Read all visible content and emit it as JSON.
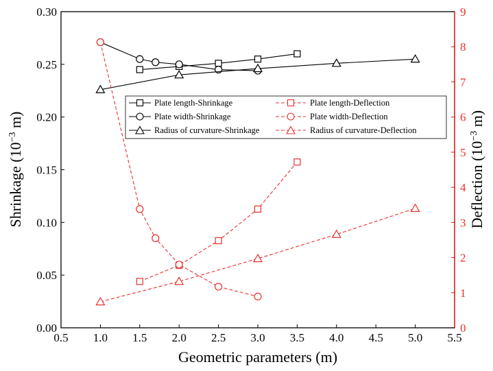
{
  "chart_data": {
    "type": "line",
    "xlabel": "Geometric parameters (m)",
    "ylabel_left": "Shrinkage (10",
    "ylabel_left_exp": "−3",
    "ylabel_left_unit": " m)",
    "ylabel_right": "Deflection (10",
    "ylabel_right_exp": "−3",
    "ylabel_right_unit": " m)",
    "xlim": [
      0.5,
      5.5
    ],
    "ylim_left": [
      0.0,
      0.3
    ],
    "ylim_right": [
      0,
      9
    ],
    "x_ticks": [
      "0.5",
      "1.0",
      "1.5",
      "2.0",
      "2.5",
      "3.0",
      "3.5",
      "4.0",
      "4.5",
      "5.0",
      "5.5"
    ],
    "y_left_ticks": [
      "0.00",
      "0.05",
      "0.10",
      "0.15",
      "0.20",
      "0.25",
      "0.30"
    ],
    "y_right_ticks": [
      "0",
      "1",
      "2",
      "3",
      "4",
      "5",
      "6",
      "7",
      "8",
      "9"
    ],
    "colors": {
      "shrinkage": "#000000",
      "deflection": "#e8302e"
    },
    "legend_position": "upper-middle, inside plot",
    "series": [
      {
        "name": "Plate length-Shrinkage",
        "axis": "left",
        "marker": "square",
        "style": "solid",
        "x": [
          1.5,
          2.0,
          2.5,
          3.0,
          3.5
        ],
        "y": [
          0.245,
          0.248,
          0.251,
          0.255,
          0.26
        ]
      },
      {
        "name": "Plate width-Shrinkage",
        "axis": "left",
        "marker": "circle",
        "style": "solid",
        "x": [
          1.0,
          1.5,
          1.7,
          2.0,
          2.5,
          3.0
        ],
        "y": [
          0.271,
          0.255,
          0.252,
          0.25,
          0.245,
          0.244
        ]
      },
      {
        "name": "Radius of curvature-Shrinkage",
        "axis": "left",
        "marker": "triangle",
        "style": "solid",
        "x": [
          1.0,
          2.0,
          3.0,
          4.0,
          5.0
        ],
        "y": [
          0.226,
          0.24,
          0.246,
          0.251,
          0.255
        ]
      },
      {
        "name": "Plate length-Deflection",
        "axis": "right",
        "marker": "square",
        "style": "dashed",
        "x": [
          1.5,
          2.0,
          2.5,
          3.0,
          3.5
        ],
        "y": [
          1.32,
          1.78,
          2.48,
          3.38,
          4.72
        ]
      },
      {
        "name": "Plate width-Deflection",
        "axis": "right",
        "marker": "circle",
        "style": "dashed",
        "x": [
          1.0,
          1.5,
          1.7,
          2.0,
          2.5,
          3.0
        ],
        "y": [
          8.13,
          3.38,
          2.55,
          1.8,
          1.17,
          0.89
        ]
      },
      {
        "name": "Radius of curvature-Deflection",
        "axis": "right",
        "marker": "triangle",
        "style": "dashed",
        "x": [
          1.0,
          2.0,
          3.0,
          4.0,
          5.0
        ],
        "y": [
          0.74,
          1.32,
          1.97,
          2.66,
          3.4
        ]
      }
    ]
  }
}
